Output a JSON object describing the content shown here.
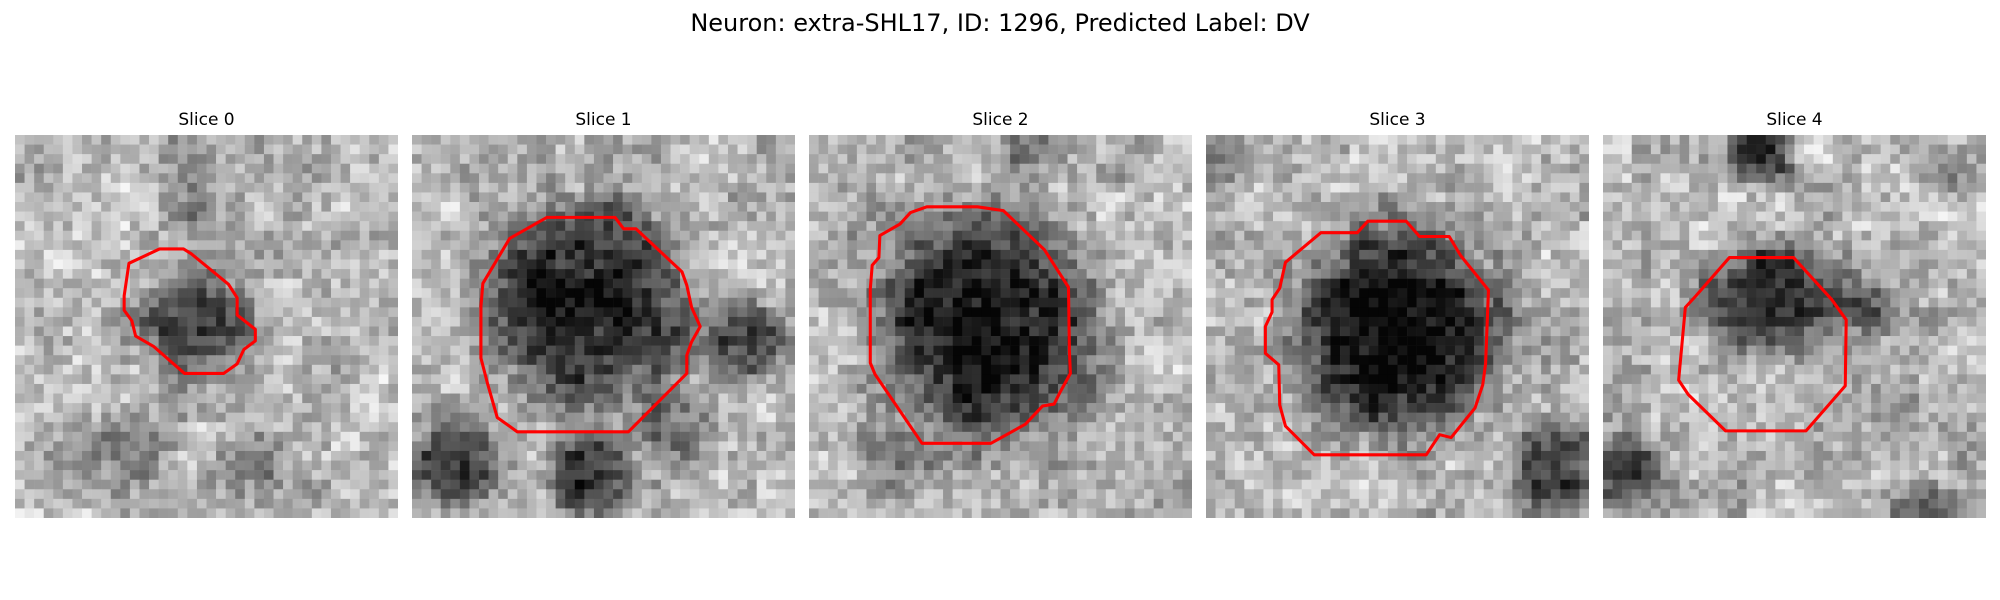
{
  "figure": {
    "title": "Neuron: extra-SHL17, ID: 1296, Predicted Label: DV"
  },
  "colors": {
    "contour": "#ff0000",
    "background": "#ffffff"
  },
  "panels": [
    {
      "title": "Slice 0"
    },
    {
      "title": "Slice 1"
    },
    {
      "title": "Slice 2"
    },
    {
      "title": "Slice 3"
    },
    {
      "title": "Slice 4"
    }
  ]
}
